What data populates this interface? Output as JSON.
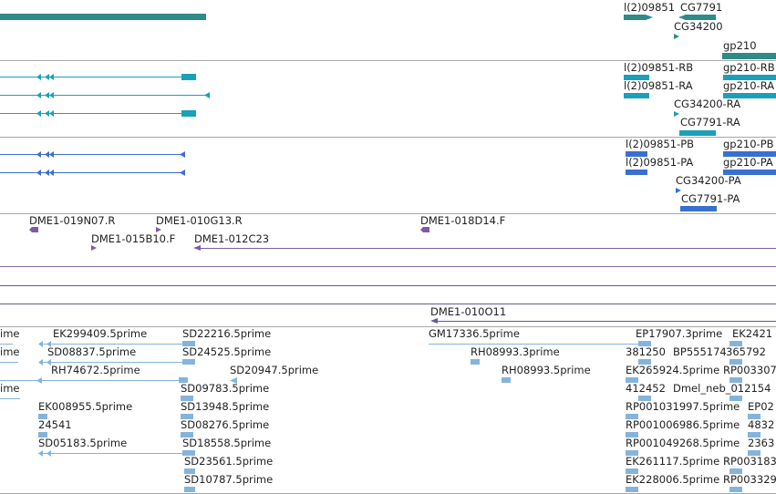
{
  "colors": {
    "gene": "#2e8b88",
    "transcript_mrna": "#1aa0b8",
    "transcript_cds": "#3a6fd0",
    "bac_end": "#7e5aa8",
    "bac": "#6a55a0",
    "est": "#84b4dc",
    "separator": "#a8a8a8"
  },
  "tracks": {
    "genes": {
      "labels": [
        "l(2)09851",
        "CG7791",
        "CG34200",
        "gp210"
      ]
    },
    "mrna": {
      "labels": [
        "l(2)09851-RB",
        "gp210-RB",
        "l(2)09851-RA",
        "gp210-RA",
        "CG34200-RA",
        "CG7791-RA"
      ]
    },
    "cds": {
      "labels": [
        "l(2)09851-PB",
        "gp210-PB",
        "l(2)09851-PA",
        "gp210-PA",
        "CG34200-PA",
        "CG7791-PA"
      ]
    },
    "bac_ends": {
      "labels": [
        "DME1-019N07.R",
        "DME1-010G13.R",
        "DME1-018D14.F",
        "DME1-015B10.F",
        "DME1-012C23"
      ]
    },
    "bacs": {
      "labels": [
        "DME1-010O11"
      ]
    },
    "ests": {
      "labels": [
        "ime",
        "EK299409.5prime",
        "SD22216.5prime",
        "GM17336.5prime",
        "EP17907.3prime",
        "EK2421",
        "ime",
        "SD08837.5prime",
        "SD24525.5prime",
        "RH08993.3prime",
        "381250",
        "BP555174",
        "365792",
        "RH74672.5prime",
        "SD20947.5prime",
        "RH08993.5prime",
        "EK265924.5prime",
        "RP003307",
        "ime",
        "SD09783.5prime",
        "412452",
        "Dmel_neb_012154",
        "EK008955.5prime",
        "SD13948.5prime",
        "RP001031997.5prime",
        "EP02",
        "24541",
        "SD08276.5prime",
        "RP001006986.5prime",
        "4832",
        "SD05183.5prime",
        "SD18558.5prime",
        "RP001049268.5prime",
        "2363",
        "SD23561.5prime",
        "EK261117.5prime",
        "RP003183",
        "SD10787.5prime",
        "EK228006.5prime",
        "RP003329"
      ]
    }
  }
}
